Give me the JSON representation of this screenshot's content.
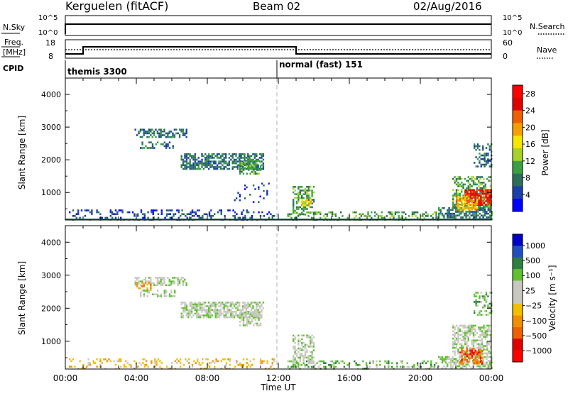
{
  "header": {
    "title": "Kerguelen (fitACF)",
    "beam": "Beam 02",
    "date": "02/Aug/2016"
  },
  "params": {
    "nsky_label": "N.Sky",
    "nsearch_label": "N.Search",
    "freq_label": "Freq.",
    "freq_unit": "[MHz]",
    "nave_label": "Nave",
    "cpid_label": "CPID",
    "nsky_ticks": [
      "10^5",
      "10^0"
    ],
    "nsearch_ticks": [
      "10^5",
      "10^0"
    ],
    "freq_ticks": [
      "18",
      "8"
    ],
    "nave_ticks": [
      "60",
      "0"
    ],
    "cpid_segments": [
      {
        "label": "themis 3300",
        "start_hour": 0
      },
      {
        "label": "normal (fast) 151",
        "start_hour": 12
      }
    ]
  },
  "colors": {
    "power": [
      "#0000ff",
      "#1a3fa8",
      "#2d6e5a",
      "#3aa040",
      "#a6d22a",
      "#f5e600",
      "#f5a000",
      "#f06000",
      "#e00000",
      "#ff0000"
    ],
    "velocity": [
      "#0000c8",
      "#2050c0",
      "#2c8040",
      "#60c030",
      "#c8c8c0",
      "#c8c8c0",
      "#f0c000",
      "#f09000",
      "#f06000",
      "#e00000",
      "#ff0000"
    ]
  },
  "chart_data": [
    {
      "type": "heatmap",
      "name": "power",
      "ylabel": "Slant Range [km]",
      "ylim": [
        180,
        4500
      ],
      "yticks": [
        1000,
        2000,
        3000,
        4000
      ],
      "xlim_hours": [
        0,
        24
      ],
      "colorbar_label": "Power [dB]",
      "colorbar_ticks": [
        4,
        8,
        12,
        16,
        20,
        24,
        28
      ],
      "colorbar_range": [
        0,
        30
      ],
      "blobs": [
        {
          "h0": 0.2,
          "h1": 11.8,
          "r0": 180,
          "r1": 480,
          "level": 1,
          "density": 0.25
        },
        {
          "h0": 3.9,
          "h1": 6.8,
          "r0": 2700,
          "r1": 2950,
          "level": 2,
          "density": 0.55
        },
        {
          "h0": 4.2,
          "h1": 6.2,
          "r0": 2380,
          "r1": 2560,
          "level": 2,
          "density": 0.35
        },
        {
          "h0": 6.5,
          "h1": 11.2,
          "r0": 1700,
          "r1": 2200,
          "level": 2,
          "density": 0.65
        },
        {
          "h0": 9.8,
          "h1": 11.0,
          "r0": 1600,
          "r1": 2000,
          "level": 3,
          "density": 0.6
        },
        {
          "h0": 9.5,
          "h1": 11.5,
          "r0": 700,
          "r1": 1300,
          "level": 1,
          "density": 0.15
        },
        {
          "h0": 12.8,
          "h1": 14.0,
          "r0": 350,
          "r1": 1200,
          "level": 3,
          "density": 0.55
        },
        {
          "h0": 13.3,
          "h1": 13.8,
          "r0": 600,
          "r1": 800,
          "level": 5,
          "density": 0.7
        },
        {
          "h0": 12.5,
          "h1": 21.0,
          "r0": 180,
          "r1": 420,
          "level": 3,
          "density": 0.35
        },
        {
          "h0": 21.0,
          "h1": 24.0,
          "r0": 180,
          "r1": 550,
          "level": 2,
          "density": 0.6
        },
        {
          "h0": 21.8,
          "h1": 24.0,
          "r0": 500,
          "r1": 1500,
          "level": 3,
          "density": 0.55
        },
        {
          "h0": 22.5,
          "h1": 24.0,
          "r0": 600,
          "r1": 1100,
          "level": 8,
          "density": 0.75
        },
        {
          "h0": 22.0,
          "h1": 23.2,
          "r0": 450,
          "r1": 900,
          "level": 6,
          "density": 0.6
        },
        {
          "h0": 23.0,
          "h1": 24.0,
          "r0": 1800,
          "r1": 2500,
          "level": 2,
          "density": 0.4
        }
      ]
    },
    {
      "type": "heatmap",
      "name": "velocity",
      "ylabel": "Slant Range [km]",
      "ylim": [
        180,
        4500
      ],
      "yticks": [
        1000,
        2000,
        3000,
        4000
      ],
      "xlim_hours": [
        0,
        24
      ],
      "xticks": [
        "00:00",
        "04:00",
        "08:00",
        "12:00",
        "16:00",
        "20:00",
        "00:00"
      ],
      "xlabel": "Time UT",
      "colorbar_label": "Velocity [m s⁻¹]",
      "colorbar_ticks": [
        "1000",
        "500",
        "100",
        "25",
        "−25",
        "−100",
        "−500",
        "−1000"
      ],
      "blobs": [
        {
          "h0": 0.2,
          "h1": 11.8,
          "r0": 180,
          "r1": 480,
          "level": 6,
          "density": 0.25
        },
        {
          "h0": 3.9,
          "h1": 6.8,
          "r0": 2700,
          "r1": 2950,
          "level": 4,
          "density": 0.55
        },
        {
          "h0": 4.0,
          "h1": 4.8,
          "r0": 2550,
          "r1": 2800,
          "level": 7,
          "density": 0.6
        },
        {
          "h0": 4.2,
          "h1": 6.2,
          "r0": 2380,
          "r1": 2560,
          "level": 4,
          "density": 0.35
        },
        {
          "h0": 6.5,
          "h1": 11.2,
          "r0": 1700,
          "r1": 2200,
          "level": 4,
          "density": 0.7
        },
        {
          "h0": 9.8,
          "h1": 11.0,
          "r0": 1500,
          "r1": 1900,
          "level": 4,
          "density": 0.6
        },
        {
          "h0": 12.8,
          "h1": 14.0,
          "r0": 350,
          "r1": 1200,
          "level": 4,
          "density": 0.55
        },
        {
          "h0": 12.5,
          "h1": 21.0,
          "r0": 180,
          "r1": 420,
          "level": 3,
          "density": 0.3
        },
        {
          "h0": 21.0,
          "h1": 24.0,
          "r0": 180,
          "r1": 550,
          "level": 4,
          "density": 0.55
        },
        {
          "h0": 21.8,
          "h1": 24.0,
          "r0": 500,
          "r1": 1500,
          "level": 4,
          "density": 0.6
        },
        {
          "h0": 22.2,
          "h1": 23.5,
          "r0": 350,
          "r1": 800,
          "level": 8,
          "density": 0.55
        },
        {
          "h0": 23.0,
          "h1": 24.0,
          "r0": 1800,
          "r1": 2500,
          "level": 3,
          "density": 0.4
        }
      ]
    }
  ],
  "axis": {
    "x_ticks": [
      "00:00",
      "04:00",
      "08:00",
      "12:00",
      "16:00",
      "20:00",
      "00:00"
    ],
    "x_label": "Time UT",
    "y_label": "Slant Range [km]",
    "y_ticks": [
      "1000",
      "2000",
      "3000",
      "4000"
    ]
  }
}
